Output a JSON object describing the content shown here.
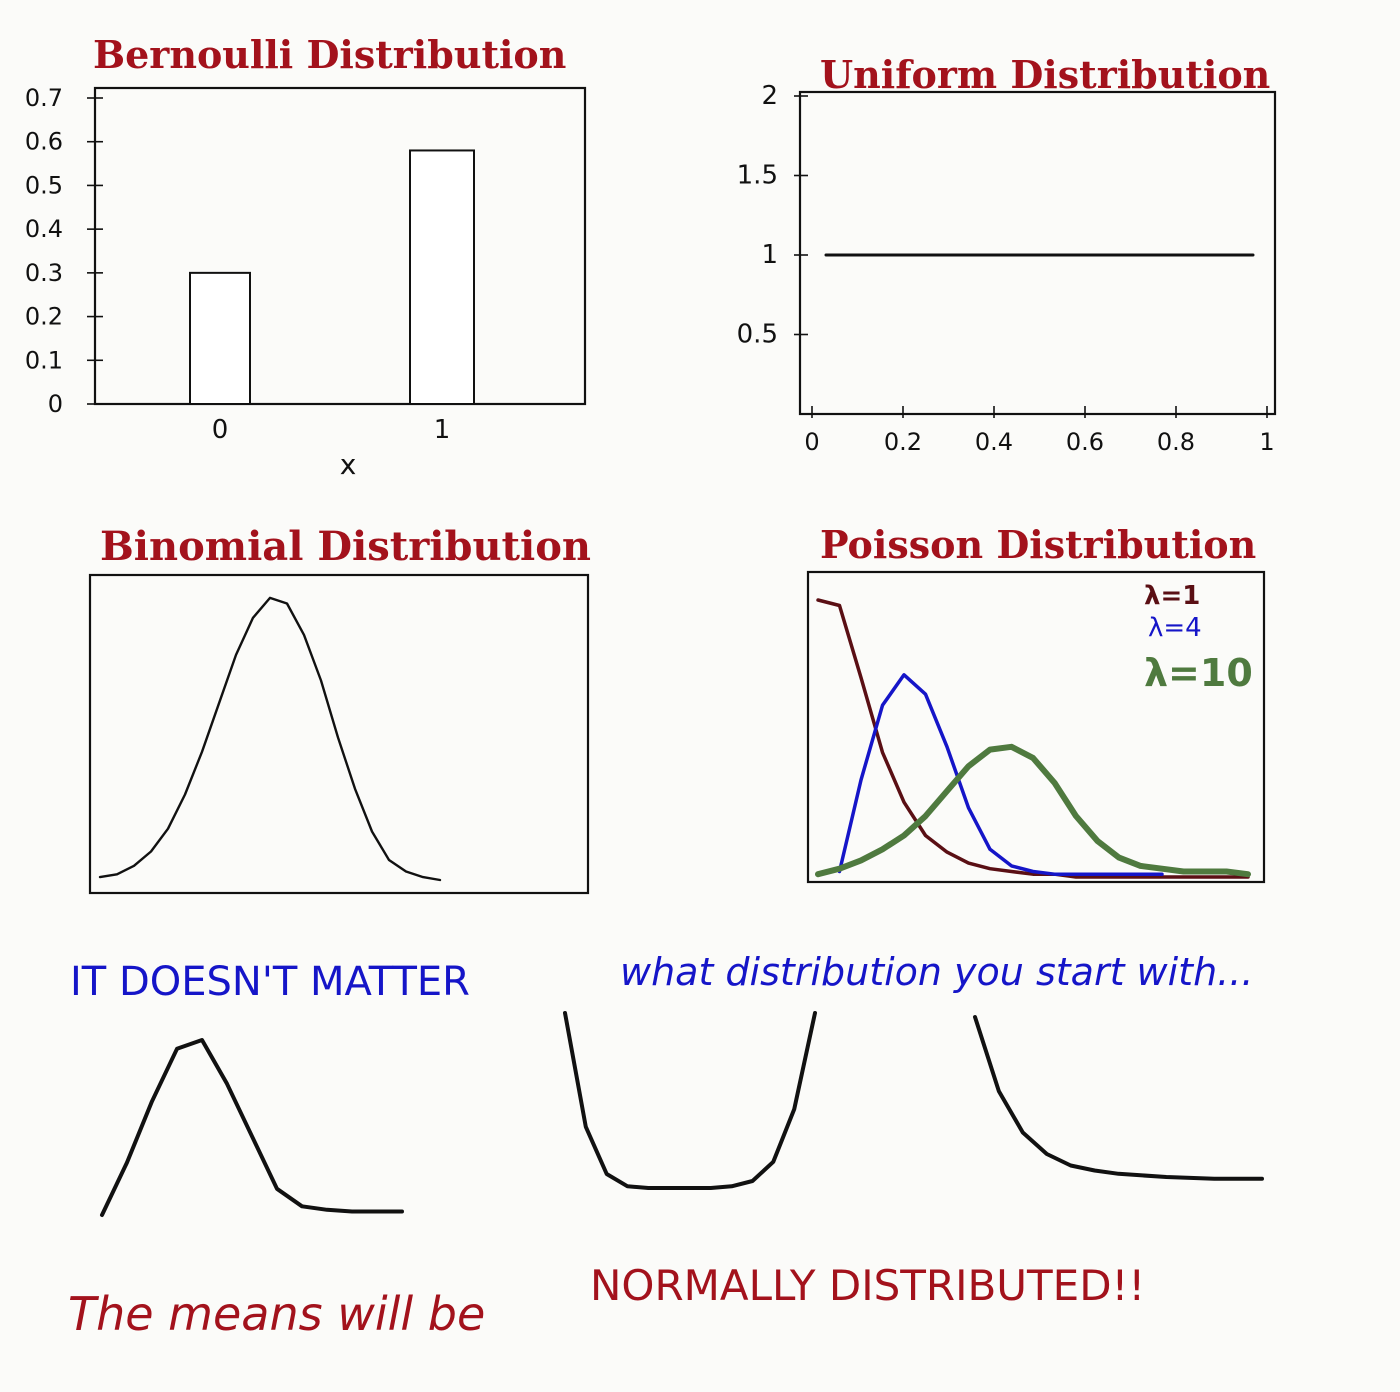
{
  "colors": {
    "title": "#a3121c",
    "ink": "#111111",
    "blue": "#1515c8",
    "green": "#4f7a3f",
    "maroon": "#5a0f14",
    "paper": "#fbfbf9"
  },
  "chart_data": [
    {
      "type": "bar",
      "title": "Bernoulli Distribution",
      "xlabel": "x",
      "ylabel": "",
      "categories": [
        "0",
        "1"
      ],
      "values": [
        0.3,
        0.58
      ],
      "ylim": [
        0,
        0.7
      ],
      "yticks": [
        0,
        0.1,
        0.2,
        0.3,
        0.4,
        0.5,
        0.6,
        0.7
      ],
      "ytick_labels": [
        "0",
        "0.1",
        "0.2",
        "0.3",
        "0.4",
        "0.5",
        "0.6",
        "0.7"
      ]
    },
    {
      "type": "line",
      "title": "Uniform Distribution",
      "x": [
        0,
        1
      ],
      "y": [
        1,
        1
      ],
      "xlim": [
        0,
        1
      ],
      "ylim": [
        0,
        2
      ],
      "xticks": [
        0,
        0.2,
        0.4,
        0.6,
        0.8,
        1
      ],
      "xtick_labels": [
        "0",
        "0.2",
        "0.4",
        "0.6",
        "0.8",
        "1"
      ],
      "yticks": [
        0.5,
        1,
        1.5,
        2
      ],
      "ytick_labels": [
        "0.5",
        "1",
        "1.5",
        "2"
      ]
    },
    {
      "type": "line",
      "title": "Binomial Distribution",
      "x": [
        0,
        1,
        2,
        3,
        4,
        5,
        6,
        7,
        8,
        9,
        10,
        11,
        12,
        13,
        14,
        15,
        16,
        17,
        18,
        19,
        20
      ],
      "y": [
        0.01,
        0.02,
        0.05,
        0.1,
        0.18,
        0.3,
        0.45,
        0.62,
        0.79,
        0.92,
        0.99,
        0.97,
        0.86,
        0.7,
        0.5,
        0.32,
        0.17,
        0.07,
        0.03,
        0.01,
        0.0
      ]
    },
    {
      "type": "line",
      "title": "Poisson Distribution",
      "legend": "top-right",
      "series": [
        {
          "name": "λ=1",
          "color": "#5a0f14",
          "x": [
            0,
            1,
            2,
            3,
            4,
            5,
            6,
            7,
            8,
            9,
            10,
            11,
            12,
            13,
            14,
            15,
            16,
            17,
            18,
            19,
            20
          ],
          "y": [
            1.0,
            0.98,
            0.72,
            0.45,
            0.27,
            0.15,
            0.09,
            0.05,
            0.03,
            0.02,
            0.01,
            0.01,
            0.0,
            0.0,
            0.0,
            0.0,
            0.0,
            0.0,
            0.0,
            0.0,
            0.0
          ]
        },
        {
          "name": "λ=4",
          "color": "#1515c8",
          "x": [
            1,
            2,
            3,
            4,
            5,
            6,
            7,
            8,
            9,
            10,
            11,
            12,
            13,
            14,
            15,
            16
          ],
          "y": [
            0.02,
            0.35,
            0.62,
            0.73,
            0.66,
            0.47,
            0.25,
            0.1,
            0.04,
            0.02,
            0.01,
            0.01,
            0.01,
            0.01,
            0.01,
            0.01
          ]
        },
        {
          "name": "λ=10",
          "color": "#4f7a3f",
          "x": [
            0,
            1,
            2,
            3,
            4,
            5,
            6,
            7,
            8,
            9,
            10,
            11,
            12,
            13,
            14,
            15,
            16,
            17,
            18,
            19,
            20
          ],
          "y": [
            0.01,
            0.03,
            0.06,
            0.1,
            0.15,
            0.22,
            0.31,
            0.4,
            0.46,
            0.47,
            0.43,
            0.34,
            0.22,
            0.13,
            0.07,
            0.04,
            0.03,
            0.02,
            0.02,
            0.02,
            0.01
          ]
        }
      ]
    },
    {
      "type": "line",
      "x": [
        0,
        1,
        2,
        3,
        4,
        5,
        6,
        7,
        8,
        9,
        10,
        11,
        12
      ],
      "y": [
        0.0,
        0.3,
        0.65,
        0.95,
        1.0,
        0.75,
        0.45,
        0.15,
        0.05,
        0.03,
        0.02,
        0.02,
        0.02
      ]
    },
    {
      "type": "line",
      "x": [
        0,
        1,
        2,
        3,
        4,
        5,
        6,
        7,
        8,
        9,
        10,
        11,
        12
      ],
      "y": [
        1.0,
        0.35,
        0.08,
        0.01,
        0.0,
        0.0,
        0.0,
        0.0,
        0.01,
        0.04,
        0.15,
        0.45,
        1.0
      ]
    },
    {
      "type": "line",
      "x": [
        0,
        1,
        2,
        3,
        4,
        5,
        6,
        7,
        8,
        9,
        10,
        11,
        12
      ],
      "y": [
        1.0,
        0.55,
        0.3,
        0.17,
        0.1,
        0.07,
        0.05,
        0.04,
        0.03,
        0.025,
        0.02,
        0.02,
        0.02
      ]
    }
  ],
  "message": {
    "part1": "IT DOESN'T MATTER",
    "part2": "what distribution you start with...",
    "part3": "The means will be",
    "part4": "NORMALLY DISTRIBUTED!!"
  }
}
